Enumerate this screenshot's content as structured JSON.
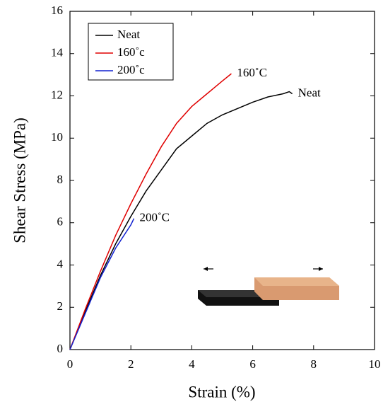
{
  "chart_data": {
    "type": "line",
    "x_label": "Strain (%)",
    "y_label": "Shear Stress (MPa)",
    "xlim": [
      0,
      10
    ],
    "ylim": [
      0,
      16
    ],
    "xticks": [
      0,
      2,
      4,
      6,
      8,
      10
    ],
    "yticks": [
      0,
      2,
      4,
      6,
      8,
      10,
      12,
      14,
      16
    ],
    "legend": "top-left",
    "series": [
      {
        "name": "Neat",
        "color": "#000000",
        "end_label": "Neat",
        "x": [
          0,
          0.5,
          1,
          1.5,
          2,
          2.5,
          3,
          3.5,
          4,
          4.5,
          5,
          5.5,
          6,
          6.5,
          7,
          7.2,
          7.3
        ],
        "values": [
          0,
          1.8,
          3.5,
          5,
          6.3,
          7.5,
          8.5,
          9.5,
          10.1,
          10.7,
          11.1,
          11.4,
          11.7,
          11.95,
          12.1,
          12.2,
          12.1
        ]
      },
      {
        "name": "160˚c",
        "color": "#e00000",
        "end_label": "160˚C",
        "x": [
          0,
          0.5,
          1,
          1.5,
          2,
          2.5,
          3,
          3.5,
          4,
          4.5,
          5,
          5.3
        ],
        "values": [
          0,
          1.9,
          3.7,
          5.4,
          6.9,
          8.3,
          9.6,
          10.7,
          11.5,
          12.1,
          12.7,
          13.05
        ]
      },
      {
        "name": "200˚c",
        "color": "#1020d0",
        "end_label": "200˚C",
        "x": [
          0,
          0.5,
          1,
          1.5,
          2,
          2.1
        ],
        "values": [
          0,
          1.7,
          3.4,
          4.8,
          5.9,
          6.2
        ]
      }
    ]
  }
}
